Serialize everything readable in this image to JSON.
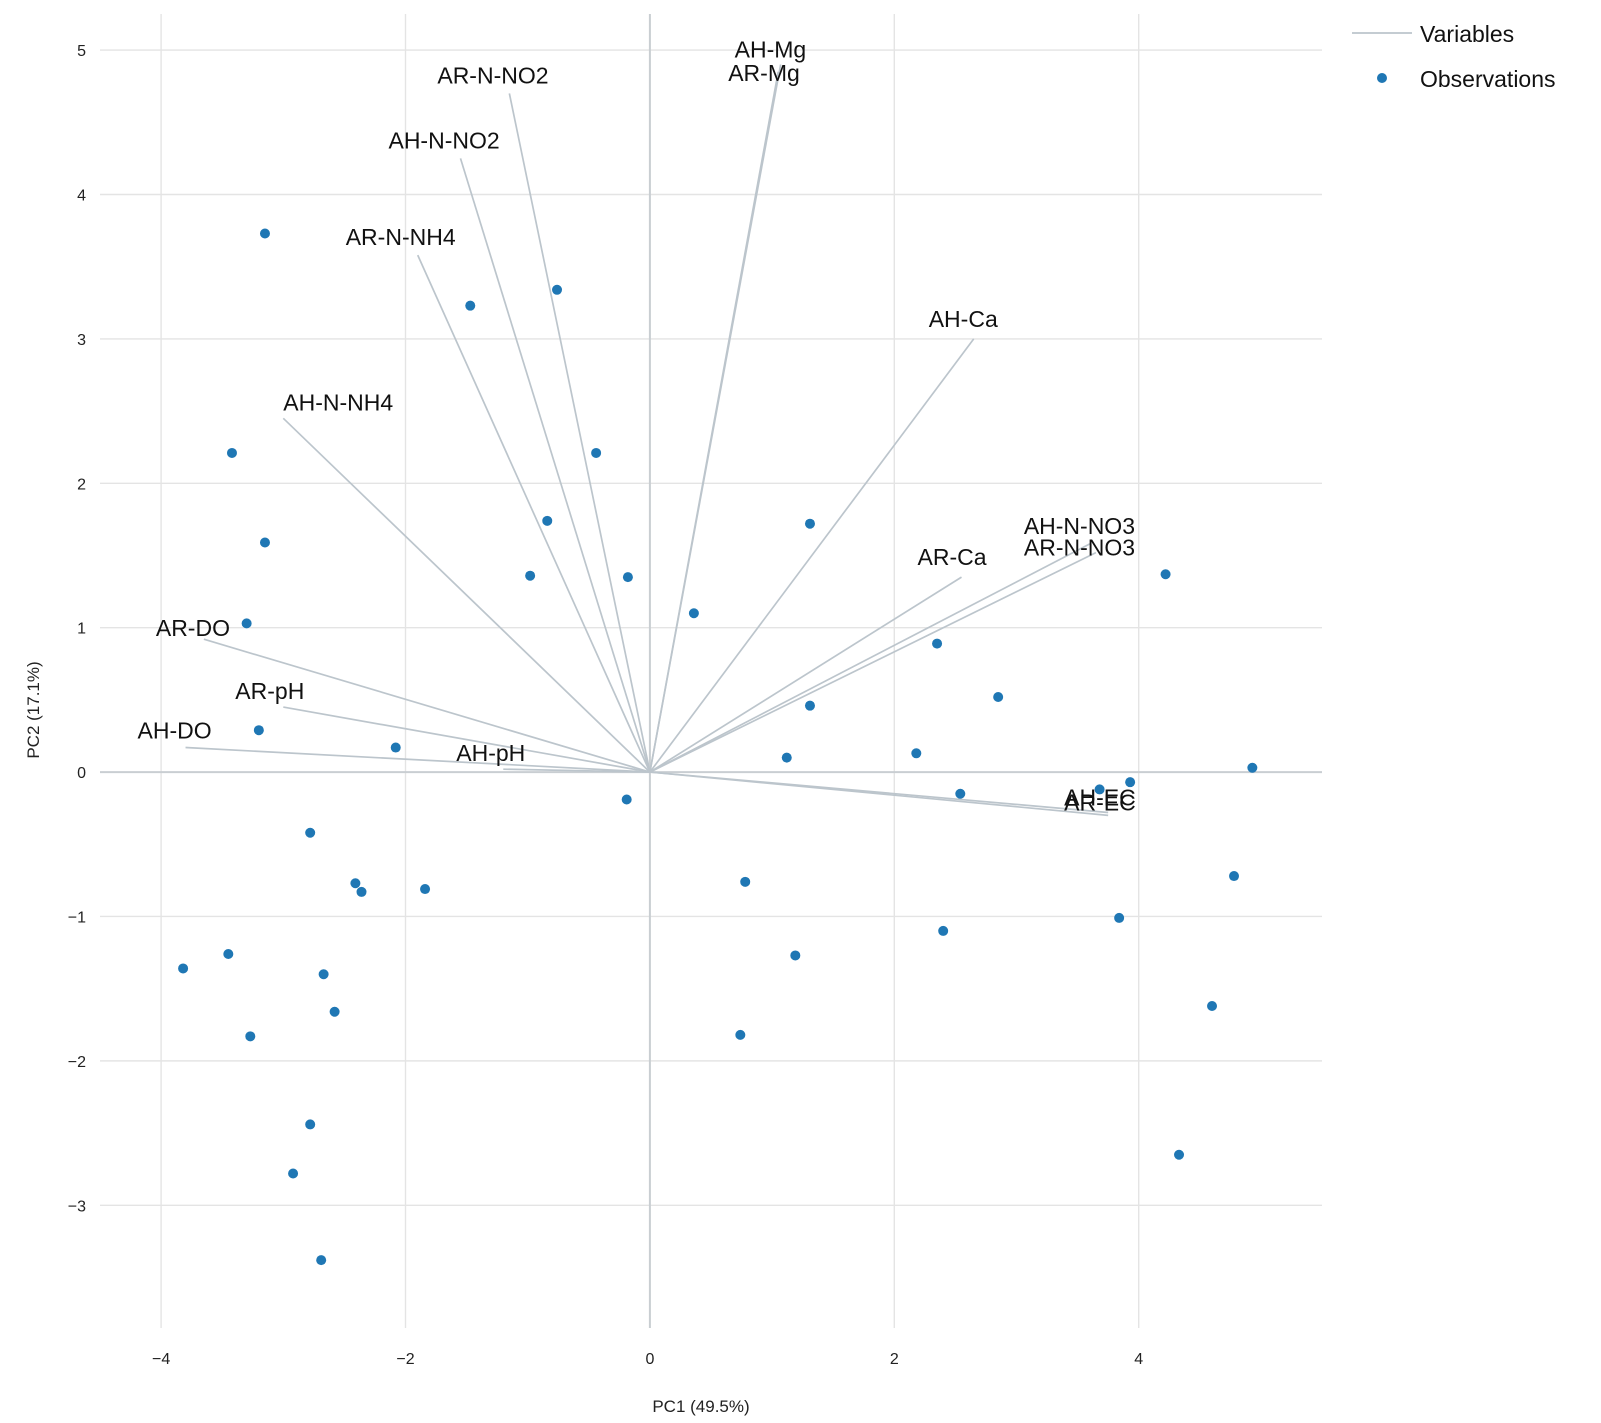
{
  "chart_data": {
    "type": "scatter",
    "subtype": "pca-biplot",
    "title": "",
    "xlabel": "PC1 (49.5%)",
    "ylabel": "PC2 (17.1%)",
    "xlim": [
      -4.5,
      5.5
    ],
    "ylim": [
      -3.85,
      5.25
    ],
    "xticks": [
      -4,
      -2,
      0,
      2,
      4
    ],
    "xtick_labels": [
      "−4",
      "−2",
      "0",
      "2",
      "4"
    ],
    "yticks": [
      -3,
      -2,
      -1,
      0,
      1,
      2,
      3,
      4,
      5
    ],
    "ytick_labels": [
      "−3",
      "−2",
      "−1",
      "0",
      "1",
      "2",
      "3",
      "4",
      "5"
    ],
    "grid": true,
    "legend_position": "top-right",
    "legend": [
      {
        "name": "Variables",
        "kind": "line",
        "color": "#bcc5cc"
      },
      {
        "name": "Observations",
        "kind": "point",
        "color": "#1f77b4"
      }
    ],
    "variables": [
      {
        "name": "AH-Mg",
        "x": 1.07,
        "y": 4.9
      },
      {
        "name": "AR-Mg",
        "x": 1.05,
        "y": 4.85
      },
      {
        "name": "AR-N-NO2",
        "x": -1.15,
        "y": 4.7
      },
      {
        "name": "AH-N-NO2",
        "x": -1.55,
        "y": 4.25
      },
      {
        "name": "AR-N-NH4",
        "x": -1.9,
        "y": 3.58
      },
      {
        "name": "AH-Ca",
        "x": 2.65,
        "y": 3.0
      },
      {
        "name": "AH-N-NH4",
        "x": -3.0,
        "y": 2.45
      },
      {
        "name": "AH-N-NO3",
        "x": 3.6,
        "y": 1.58
      },
      {
        "name": "AR-N-NO3",
        "x": 3.65,
        "y": 1.52
      },
      {
        "name": "AR-Ca",
        "x": 2.55,
        "y": 1.35
      },
      {
        "name": "AR-DO",
        "x": -3.65,
        "y": 0.92
      },
      {
        "name": "AR-pH",
        "x": -3.0,
        "y": 0.45
      },
      {
        "name": "AH-DO",
        "x": -3.8,
        "y": 0.17
      },
      {
        "name": "AH-pH",
        "x": -1.2,
        "y": 0.02
      },
      {
        "name": "AH-EC",
        "x": 3.75,
        "y": -0.28
      },
      {
        "name": "AR-EC",
        "x": 3.75,
        "y": -0.3
      }
    ],
    "observations": {
      "x": [
        -3.15,
        -1.47,
        -0.76,
        -3.42,
        -0.44,
        -3.15,
        -0.84,
        1.31,
        -0.98,
        -0.18,
        4.22,
        0.36,
        -3.3,
        2.35,
        2.85,
        1.31,
        -3.2,
        -2.08,
        2.18,
        1.12,
        4.93,
        3.93,
        3.68,
        2.54,
        -0.19,
        -2.78,
        0.78,
        4.78,
        -2.41,
        -2.36,
        -1.84,
        3.84,
        2.4,
        -3.45,
        1.19,
        -3.82,
        -2.67,
        -2.58,
        4.6,
        -3.27,
        0.74,
        -2.78,
        4.33,
        -2.92,
        -2.69
      ],
      "y": [
        3.73,
        3.23,
        3.34,
        2.21,
        2.21,
        1.59,
        1.74,
        1.72,
        1.36,
        1.35,
        1.37,
        1.1,
        1.03,
        0.89,
        0.52,
        0.46,
        0.29,
        0.17,
        0.13,
        0.1,
        0.03,
        -0.07,
        -0.12,
        -0.15,
        -0.19,
        -0.42,
        -0.76,
        -0.72,
        -0.77,
        -0.83,
        -0.81,
        -1.01,
        -1.1,
        -1.26,
        -1.27,
        -1.36,
        -1.4,
        -1.66,
        -1.62,
        -1.83,
        -1.82,
        -2.44,
        -2.65,
        -2.78,
        -3.38
      ]
    }
  }
}
